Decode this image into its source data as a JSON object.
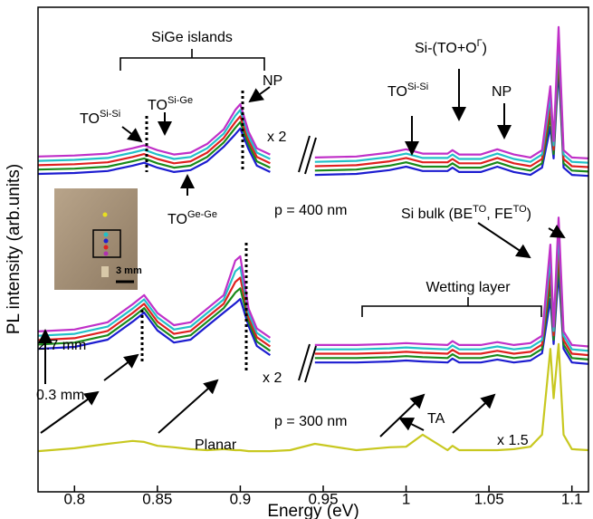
{
  "chart_data": {
    "type": "line",
    "x_label": "Energy (eV)",
    "y_label": "PL intensity (arb.units)",
    "xlim": [
      0.778,
      1.11
    ],
    "ylim": [
      0,
      100
    ],
    "xticks": [
      0.8,
      0.85,
      0.9,
      0.95,
      1,
      1.05,
      1.1
    ],
    "x": [
      0.778,
      0.8,
      0.82,
      0.835,
      0.842,
      0.85,
      0.86,
      0.87,
      0.88,
      0.89,
      0.897,
      0.9,
      0.905,
      0.91,
      0.918,
      0.93,
      0.945,
      0.97,
      0.99,
      1.0,
      1.01,
      1.025,
      1.028,
      1.032,
      1.045,
      1.055,
      1.065,
      1.075,
      1.082,
      1.087,
      1.089,
      1.092,
      1.095,
      1.1,
      1.11
    ],
    "series": [
      {
        "color": "#1c1cd0",
        "values": [
          65.6,
          65.8,
          66.2,
          67.3,
          67.9,
          66.9,
          66.0,
          66.4,
          68.2,
          71.2,
          73.8,
          75.0,
          70.7,
          67.3,
          66.0,
          null,
          65.4,
          65.6,
          66.4,
          67.1,
          66.2,
          66.2,
          66.9,
          66.0,
          66.0,
          67.1,
          66.0,
          65.4,
          66.9,
          75.3,
          68.8,
          87.5,
          66.9,
          65.4,
          65.2
        ]
      },
      {
        "color": "#1a8a1a",
        "values": [
          66.5,
          66.7,
          67.1,
          68.2,
          68.8,
          67.8,
          66.9,
          67.3,
          69.1,
          72.1,
          75.1,
          76.3,
          71.6,
          68.2,
          66.9,
          null,
          66.3,
          66.5,
          67.3,
          68.0,
          67.1,
          67.1,
          67.8,
          66.9,
          66.9,
          68.0,
          66.9,
          66.3,
          67.8,
          77.4,
          69.7,
          89.6,
          67.8,
          66.3,
          66.1
        ]
      },
      {
        "color": "#e02020",
        "values": [
          67.4,
          67.6,
          68.0,
          69.1,
          69.7,
          68.7,
          67.8,
          68.2,
          70.0,
          73.0,
          76.3,
          77.5,
          72.5,
          69.1,
          67.8,
          null,
          67.2,
          67.4,
          68.2,
          68.9,
          68.0,
          68.0,
          68.7,
          67.8,
          67.8,
          68.9,
          67.8,
          67.2,
          68.7,
          79.5,
          70.6,
          91.7,
          68.7,
          67.2,
          67.0
        ]
      },
      {
        "color": "#22c0c8",
        "values": [
          68.3,
          68.5,
          68.9,
          70.0,
          70.6,
          69.6,
          68.7,
          69.1,
          70.9,
          73.9,
          77.6,
          78.8,
          73.4,
          70.0,
          68.7,
          null,
          68.1,
          68.3,
          69.1,
          69.8,
          68.9,
          68.9,
          69.6,
          68.7,
          68.7,
          69.8,
          68.7,
          68.1,
          69.6,
          81.6,
          71.5,
          93.8,
          69.6,
          68.1,
          67.9
        ]
      },
      {
        "color": "#c030c8",
        "values": [
          69.2,
          69.4,
          69.8,
          70.9,
          71.5,
          70.5,
          69.6,
          70.0,
          71.8,
          74.8,
          78.8,
          80.0,
          74.3,
          70.9,
          69.6,
          null,
          69.0,
          69.2,
          70.0,
          70.7,
          69.8,
          69.8,
          70.5,
          69.6,
          69.6,
          70.7,
          69.6,
          69.0,
          70.5,
          83.7,
          72.4,
          95.9,
          70.5,
          69.0,
          68.8
        ]
      },
      {
        "color": "#1c1cd0",
        "values": [
          29.5,
          29.9,
          31.4,
          35.1,
          37.0,
          33.3,
          30.8,
          31.4,
          34.2,
          37.0,
          38.9,
          39.8,
          34.2,
          30.1,
          28.2,
          null,
          26.7,
          26.7,
          26.9,
          27.1,
          26.9,
          26.7,
          27.5,
          26.7,
          26.7,
          27.3,
          26.7,
          27.1,
          28.6,
          39.8,
          30.5,
          45.4,
          29.5,
          26.7,
          26.4
        ]
      },
      {
        "color": "#1a8a1a",
        "values": [
          30.4,
          30.8,
          32.3,
          36.0,
          37.9,
          34.2,
          31.7,
          32.3,
          35.1,
          37.9,
          41.1,
          42.0,
          35.1,
          31.0,
          29.1,
          null,
          27.6,
          27.6,
          27.8,
          28.0,
          27.8,
          27.6,
          28.4,
          27.6,
          27.6,
          28.2,
          27.6,
          28.0,
          29.5,
          42.6,
          31.4,
          48.2,
          30.4,
          27.6,
          27.3
        ]
      },
      {
        "color": "#e02020",
        "values": [
          31.3,
          31.7,
          33.2,
          36.9,
          38.8,
          35.1,
          32.6,
          33.2,
          36.0,
          38.8,
          43.3,
          44.2,
          36.0,
          31.9,
          30.0,
          null,
          28.5,
          28.5,
          28.7,
          28.9,
          28.7,
          28.5,
          29.3,
          28.5,
          28.5,
          29.1,
          28.5,
          28.9,
          30.4,
          45.4,
          32.3,
          51.0,
          31.3,
          28.5,
          28.2
        ]
      },
      {
        "color": "#22c0c8",
        "values": [
          32.2,
          32.6,
          34.1,
          37.8,
          39.7,
          36.0,
          33.5,
          34.1,
          36.9,
          39.7,
          45.5,
          46.4,
          36.9,
          32.8,
          30.9,
          null,
          29.4,
          29.4,
          29.6,
          29.8,
          29.6,
          29.4,
          30.2,
          29.4,
          29.4,
          30.0,
          29.4,
          29.8,
          31.3,
          48.2,
          33.2,
          53.8,
          32.2,
          29.4,
          29.1
        ]
      },
      {
        "color": "#c030c8",
        "values": [
          33.1,
          33.5,
          35.0,
          38.7,
          40.6,
          36.9,
          34.4,
          35.0,
          37.8,
          40.6,
          47.7,
          48.6,
          37.8,
          33.7,
          31.8,
          null,
          30.3,
          30.3,
          30.5,
          30.7,
          30.5,
          30.3,
          31.1,
          30.3,
          30.3,
          30.9,
          30.3,
          30.7,
          32.2,
          51.0,
          34.1,
          56.6,
          33.1,
          30.3,
          30.0
        ]
      },
      {
        "color": "#c8c820",
        "values": [
          8.4,
          9.0,
          9.9,
          10.5,
          10.3,
          9.5,
          9.2,
          8.8,
          8.6,
          8.8,
          8.6,
          8.6,
          8.4,
          8.4,
          8.4,
          8.6,
          9.9,
          8.6,
          9.2,
          9.3,
          11.8,
          8.6,
          9.5,
          8.6,
          8.6,
          8.6,
          8.8,
          9.3,
          11.8,
          29.5,
          19.3,
          30.5,
          11.8,
          8.8,
          8.6
        ]
      }
    ],
    "annotations": [
      {
        "runs": [
          {
            "text": "SiGe islands"
          }
        ]
      },
      {
        "runs": [
          {
            "text": "TO"
          },
          {
            "text": "Si-Si",
            "sup": true
          }
        ]
      },
      {
        "runs": [
          {
            "text": "TO"
          },
          {
            "text": "Si-Ge",
            "sup": true
          }
        ]
      },
      {
        "runs": [
          {
            "text": "NP"
          }
        ]
      },
      {
        "runs": [
          {
            "text": "x 2"
          }
        ]
      },
      {
        "runs": [
          {
            "text": "TO"
          },
          {
            "text": "Ge-Ge",
            "sup": true
          }
        ]
      },
      {
        "runs": [
          {
            "text": "p = 400 nm"
          }
        ]
      },
      {
        "runs": [
          {
            "text": "Si-(TO+O"
          },
          {
            "text": "Γ",
            "sup": true
          },
          {
            "text": ")"
          }
        ]
      },
      {
        "runs": [
          {
            "text": "TO"
          },
          {
            "text": "Si-Si",
            "sup": true
          }
        ]
      },
      {
        "runs": [
          {
            "text": "NP"
          }
        ]
      },
      {
        "runs": [
          {
            "text": "Si bulk (BE"
          },
          {
            "text": "TO",
            "sup": true
          },
          {
            "text": ", FE"
          },
          {
            "text": "TO",
            "sup": true
          },
          {
            "text": ")"
          }
        ]
      },
      {
        "runs": [
          {
            "text": "Wetting layer"
          }
        ]
      },
      {
        "runs": [
          {
            "text": "x 2"
          }
        ]
      },
      {
        "runs": [
          {
            "text": "2.7 mm"
          }
        ]
      },
      {
        "runs": [
          {
            "text": "0.3 mm"
          }
        ]
      },
      {
        "runs": [
          {
            "text": "p = 300 nm"
          }
        ]
      },
      {
        "runs": [
          {
            "text": "TA"
          }
        ]
      },
      {
        "runs": [
          {
            "text": "x 1.5"
          }
        ]
      },
      {
        "runs": [
          {
            "text": "Planar"
          }
        ]
      },
      {
        "runs": [
          {
            "text": "3 mm"
          }
        ]
      }
    ]
  }
}
